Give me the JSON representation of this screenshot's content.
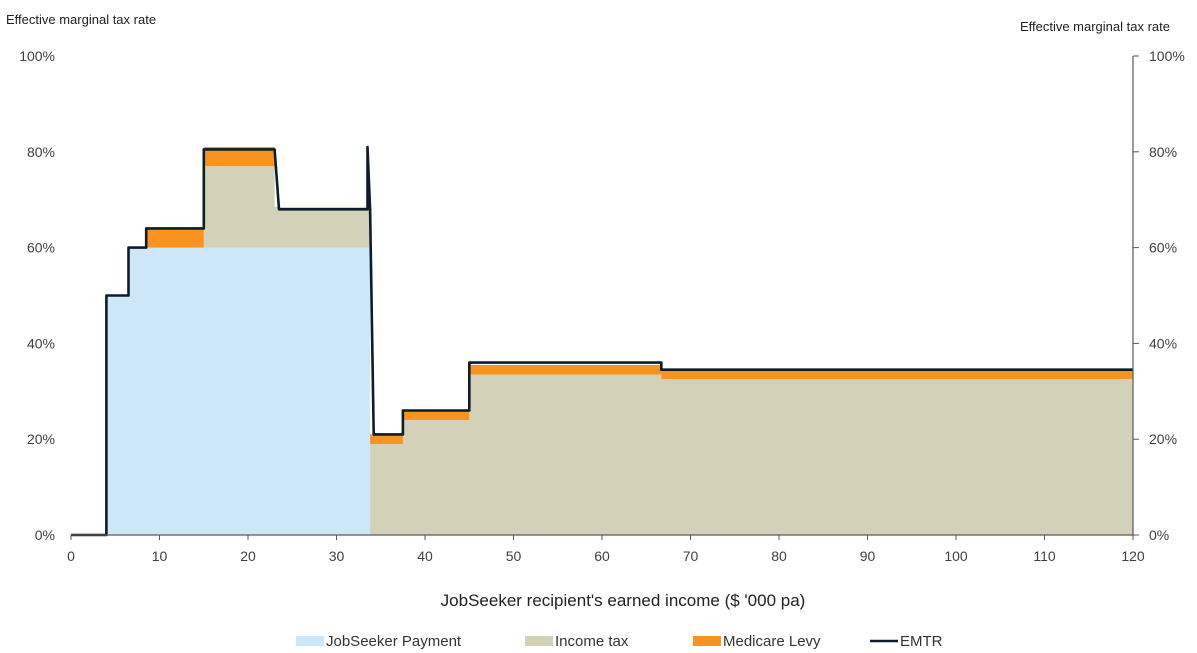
{
  "chart_data": {
    "type": "area",
    "title": "",
    "y_axis_title_left": "Effective marginal tax rate",
    "y_axis_title_right": "Effective marginal tax rate",
    "xlabel": "JobSeeker recipient's earned income ($ '000 pa)",
    "xlim": [
      0,
      120
    ],
    "ylim": [
      0,
      100
    ],
    "x_ticks": [
      0,
      10,
      20,
      30,
      40,
      50,
      60,
      70,
      80,
      90,
      100,
      110,
      120
    ],
    "y_ticks": [
      0,
      20,
      40,
      60,
      80,
      100
    ],
    "y_tick_labels": [
      "0%",
      "20%",
      "40%",
      "60%",
      "80%",
      "100%"
    ],
    "legend_position": "bottom",
    "stacked": true,
    "series": [
      {
        "name": "JobSeeker Payment",
        "color": "#cde7f8",
        "points": [
          [
            0,
            0
          ],
          [
            4,
            0
          ],
          [
            4,
            50
          ],
          [
            6.5,
            50
          ],
          [
            6.5,
            60
          ],
          [
            33.8,
            60
          ],
          [
            33.8,
            0
          ],
          [
            120,
            0
          ]
        ]
      },
      {
        "name": "Income tax",
        "color": "#d3d2b8",
        "points": [
          [
            0,
            0
          ],
          [
            15,
            0
          ],
          [
            15,
            17
          ],
          [
            23,
            17
          ],
          [
            23,
            8.5
          ],
          [
            33.8,
            8.5
          ],
          [
            33.8,
            19
          ],
          [
            37.5,
            19
          ],
          [
            37.5,
            24
          ],
          [
            45,
            24
          ],
          [
            45,
            33.5
          ],
          [
            66.7,
            33.5
          ],
          [
            66.7,
            32.5
          ],
          [
            120,
            32.5
          ]
        ]
      },
      {
        "name": "Medicare Levy",
        "color": "#f7931e",
        "points": [
          [
            0,
            0
          ],
          [
            8.5,
            0
          ],
          [
            8.5,
            4
          ],
          [
            15,
            4
          ],
          [
            15,
            4
          ],
          [
            23,
            4
          ],
          [
            23,
            0
          ],
          [
            33.8,
            0
          ],
          [
            33.8,
            2
          ],
          [
            120,
            2
          ]
        ]
      },
      {
        "name": "EMTR",
        "color": "#0d1b2a",
        "points": [
          [
            0,
            0
          ],
          [
            4,
            0
          ],
          [
            4,
            50
          ],
          [
            6.5,
            50
          ],
          [
            6.5,
            60
          ],
          [
            8.5,
            60
          ],
          [
            8.5,
            64
          ],
          [
            15,
            64
          ],
          [
            15,
            80.5
          ],
          [
            23,
            80.5
          ],
          [
            23.5,
            68
          ],
          [
            33.5,
            68
          ],
          [
            33.5,
            81
          ],
          [
            33.8,
            68
          ],
          [
            34.2,
            21
          ],
          [
            37.5,
            21
          ],
          [
            37.5,
            26
          ],
          [
            45,
            26
          ],
          [
            45,
            36
          ],
          [
            66.7,
            36
          ],
          [
            66.7,
            34.5
          ],
          [
            120,
            34.5
          ]
        ]
      }
    ]
  },
  "legend": {
    "items": [
      {
        "label": "JobSeeker Payment",
        "color": "#cde7f8",
        "kind": "box"
      },
      {
        "label": "Income tax",
        "color": "#d3d2b8",
        "kind": "box"
      },
      {
        "label": "Medicare Levy",
        "color": "#f7931e",
        "kind": "box"
      },
      {
        "label": "EMTR",
        "color": "#0d1b2a",
        "kind": "line"
      }
    ]
  }
}
